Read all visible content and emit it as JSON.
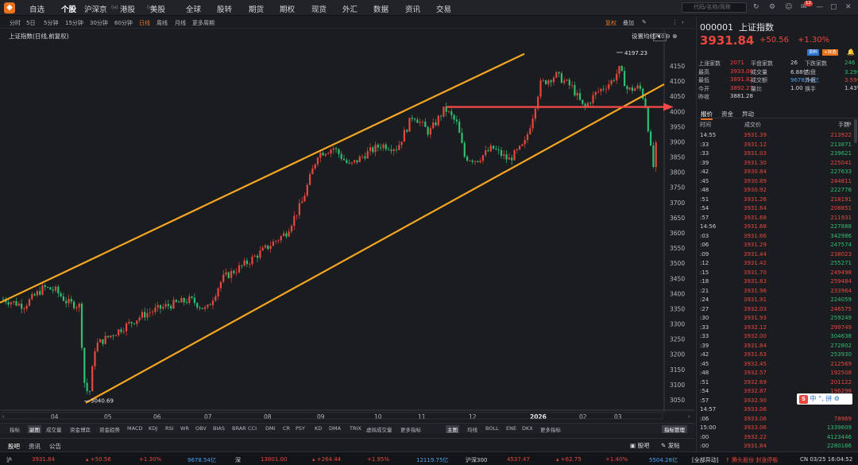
{
  "nav": {
    "items": [
      "自选",
      "个股",
      "沪深京",
      "港股",
      "美股",
      "全球",
      "股转",
      "期货",
      "期权",
      "现货",
      "外汇",
      "数据",
      "资讯",
      "交易"
    ],
    "tags": {
      "沪深京": "(ʜ)",
      "港股": "(ʜ)"
    },
    "active": "个股",
    "search_placeholder": "代码/名称/简称",
    "notify_count": "12"
  },
  "periods": [
    "分时",
    "5日",
    "5分钟",
    "15分钟",
    "30分钟",
    "60分钟",
    "日线",
    "周线",
    "月线",
    "更多周期"
  ],
  "active_period": "日线",
  "chart_tools": {
    "restore": "复权",
    "overlay": "叠加",
    "f10": "F10"
  },
  "chart_title": "上证指数(日线,前复权)",
  "set_ma": "设置均线",
  "chart_data": {
    "type": "candlestick",
    "y_ticks": [
      4150,
      4100,
      4050,
      4000,
      3950,
      3900,
      3850,
      3800,
      3750,
      3700,
      3650,
      3600,
      3550,
      3500,
      3450,
      3400,
      3350,
      3300,
      3250,
      3200,
      3150,
      3100,
      3050
    ],
    "x_ticks": [
      "04",
      "05",
      "06",
      "07",
      "08",
      "09",
      "10",
      "11",
      "12",
      "2026",
      "02",
      "03"
    ],
    "annotations": {
      "high": "4197.23",
      "low": "3040.69"
    },
    "ylim": [
      3030,
      4200
    ],
    "channel_upper": [
      [
        0,
        3370
      ],
      [
        660,
        4190
      ]
    ],
    "channel_lower": [
      [
        108,
        3040
      ],
      [
        836,
        4090
      ]
    ],
    "arrow_level": 4015,
    "waypoints": [
      [
        0,
        3385
      ],
      [
        30,
        3360
      ],
      [
        55,
        3420
      ],
      [
        70,
        3410
      ],
      [
        85,
        3370
      ],
      [
        100,
        3360
      ],
      [
        106,
        3110
      ],
      [
        112,
        3060
      ],
      [
        120,
        3230
      ],
      [
        150,
        3280
      ],
      [
        180,
        3330
      ],
      [
        210,
        3360
      ],
      [
        240,
        3380
      ],
      [
        260,
        3345
      ],
      [
        280,
        3450
      ],
      [
        310,
        3500
      ],
      [
        340,
        3560
      ],
      [
        360,
        3600
      ],
      [
        380,
        3700
      ],
      [
        400,
        3860
      ],
      [
        420,
        3880
      ],
      [
        440,
        3820
      ],
      [
        460,
        3860
      ],
      [
        480,
        3890
      ],
      [
        500,
        3880
      ],
      [
        520,
        3990
      ],
      [
        540,
        3930
      ],
      [
        560,
        4010
      ],
      [
        575,
        3960
      ],
      [
        585,
        3850
      ],
      [
        600,
        3840
      ],
      [
        620,
        3880
      ],
      [
        640,
        3840
      ],
      [
        660,
        3890
      ],
      [
        670,
        3980
      ],
      [
        680,
        4090
      ],
      [
        700,
        4120
      ],
      [
        720,
        4080
      ],
      [
        735,
        4010
      ],
      [
        750,
        4060
      ],
      [
        770,
        4100
      ],
      [
        780,
        4140
      ],
      [
        790,
        4070
      ],
      [
        805,
        4080
      ],
      [
        812,
        4030
      ],
      [
        818,
        3900
      ],
      [
        822,
        3810
      ],
      [
        826,
        3890
      ]
    ]
  },
  "indicators": [
    "指标",
    "副图",
    "成交量",
    "资金博弈",
    "资金趋势",
    "MACD",
    "KDJ",
    "RSI",
    "WR",
    "OBV",
    "BIAS",
    "BRAR",
    "CCI",
    "DMI",
    "CR",
    "PSY",
    "KD",
    "DMA",
    "TRIX",
    "虚拟成交量",
    "更多指标"
  ],
  "main_indicators": [
    "主图",
    "均线",
    "BOLL",
    "ENE",
    "DKX",
    "更多指标"
  ],
  "indicator_manage": "指标管理",
  "guba": {
    "tabs": [
      "股吧",
      "资讯",
      "公告"
    ],
    "btn_guba": "股吧",
    "btn_post": "发帖"
  },
  "ticker": {
    "sh": {
      "label": "沪",
      "price": "3931.84",
      "chg": "+50.56",
      "pct": "+1.30%",
      "vol": "9678.54亿"
    },
    "sz": {
      "label": "深",
      "price": "13801.00",
      "chg": "+264.44",
      "pct": "+1.95%",
      "vol": "12119.75亿"
    },
    "hs300": {
      "label": "沪深300",
      "price": "4537.47",
      "chg": "+62.75",
      "pct": "+1.40%",
      "vol": "5504.28亿"
    },
    "news": "[全部异动]",
    "alert": "腾头股份 封涨停板",
    "time": "CN 03/25 16:04:52"
  },
  "stock": {
    "code": "000001",
    "name": "上证指数",
    "price": "3931.84",
    "chg": "+50.56",
    "pct": "+1.30%",
    "btn_info": "资料",
    "btn_fav": "+自选",
    "stats": [
      [
        {
          "l": "上涨家数",
          "v": "2071",
          "c": "red"
        },
        {
          "l": "平盘家数",
          "v": "26",
          "c": "white"
        },
        {
          "l": "下跌家数",
          "v": "246",
          "c": "green"
        }
      ],
      [
        {
          "l": "最高",
          "v": "3933.06",
          "c": "red"
        },
        {
          "l": "成交量",
          "v": "6.88亿",
          "c": "white"
        },
        {
          "l": "内盘",
          "v": "3.29亿",
          "c": "green"
        }
      ],
      [
        {
          "l": "最低",
          "v": "3891.82",
          "c": "red"
        },
        {
          "l": "成交额",
          "v": "9678.54亿",
          "c": "blue"
        },
        {
          "l": "外盘",
          "v": "3.59亿",
          "c": "red"
        }
      ],
      [
        {
          "l": "今开",
          "v": "3892.27",
          "c": "red"
        },
        {
          "l": "量比",
          "v": "1.00",
          "c": "white"
        },
        {
          "l": "换手",
          "v": "1.43%",
          "c": "white"
        }
      ],
      [
        {
          "l": "昨收",
          "v": "3881.28",
          "c": "white"
        }
      ]
    ]
  },
  "quote": {
    "tabs": [
      "报价",
      "资金",
      "异动"
    ],
    "head": {
      "time": "时间",
      "price": "成交价",
      "vol": "手数"
    },
    "rows": [
      [
        "14:55",
        "3931.39",
        "213922",
        "r"
      ],
      [
        ":33",
        "3931.12",
        "213871",
        "g"
      ],
      [
        ":33",
        "3931.03",
        "239621",
        "g"
      ],
      [
        ":39",
        "3931.30",
        "225041",
        "r"
      ],
      [
        ":42",
        "3930.84",
        "227633",
        "g"
      ],
      [
        ":45",
        "3930.89",
        "244811",
        "r"
      ],
      [
        ":48",
        "3930.92",
        "222776",
        "g"
      ],
      [
        ":51",
        "3931.26",
        "218191",
        "r"
      ],
      [
        ":54",
        "3931.64",
        "208851",
        "r"
      ],
      [
        ":57",
        "3931.68",
        "211931",
        "r"
      ],
      [
        "14:56",
        "3931.68",
        "227888",
        "g"
      ],
      [
        ":03",
        "3931.66",
        "342986",
        "g"
      ],
      [
        ":06",
        "3931.29",
        "247574",
        "g"
      ],
      [
        ":09",
        "3931.44",
        "238023",
        "r"
      ],
      [
        ":12",
        "3931.42",
        "255271",
        "g"
      ],
      [
        ":15",
        "3931.70",
        "249498",
        "r"
      ],
      [
        ":18",
        "3931.83",
        "259484",
        "r"
      ],
      [
        ":21",
        "3931.96",
        "233964",
        "r"
      ],
      [
        ":24",
        "3931.91",
        "224059",
        "g"
      ],
      [
        ":27",
        "3932.03",
        "246575",
        "r"
      ],
      [
        ":30",
        "3931.93",
        "259249",
        "g"
      ],
      [
        ":33",
        "3932.12",
        "299749",
        "r"
      ],
      [
        ":33",
        "3932.00",
        "304638",
        "g"
      ],
      [
        ":39",
        "3931.84",
        "272802",
        "g"
      ],
      [
        ":42",
        "3931.63",
        "253930",
        "g"
      ],
      [
        ":45",
        "3932.45",
        "212569",
        "r"
      ],
      [
        ":48",
        "3932.57",
        "192508",
        "r"
      ],
      [
        ":51",
        "3932.69",
        "201122",
        "r"
      ],
      [
        ":54",
        "3932.87",
        "196298",
        "r"
      ],
      [
        ":57",
        "3932.90",
        "",
        "r"
      ],
      [
        "14:57",
        "3933.06",
        "",
        "r"
      ],
      [
        ":06",
        "3933.06",
        "78969",
        "r"
      ],
      [
        "15:00",
        "3933.06",
        "1339609",
        "g"
      ],
      [
        ":00",
        "3932.22",
        "4123446",
        "g"
      ],
      [
        ":00",
        "3931.84",
        "2280166",
        "g"
      ]
    ]
  },
  "ime": {
    "label": "中",
    "items": [
      "拼"
    ]
  }
}
